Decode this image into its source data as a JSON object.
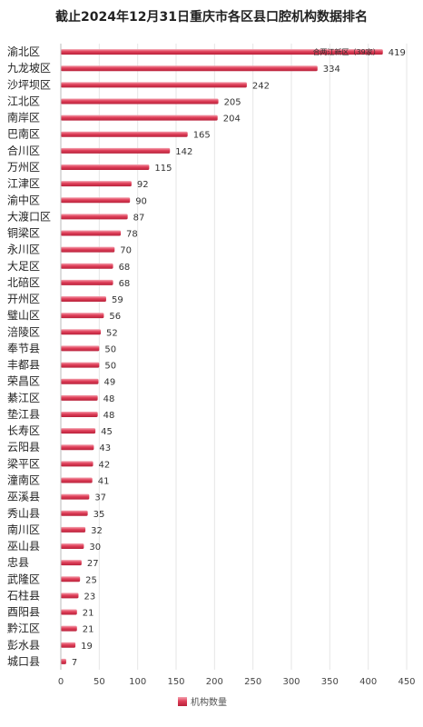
{
  "chart_data": {
    "type": "bar",
    "orientation": "horizontal",
    "title": "截止2024年12月31日重庆市各区县口腔机构数据排名",
    "categories": [
      "渝北区",
      "九龙坡区",
      "沙坪坝区",
      "江北区",
      "南岸区",
      "巴南区",
      "合川区",
      "万州区",
      "江津区",
      "渝中区",
      "大渡口区",
      "铜梁区",
      "永川区",
      "大足区",
      "北碚区",
      "开州区",
      "璧山区",
      "涪陵区",
      "奉节县",
      "丰都县",
      "荣昌区",
      "綦江区",
      "垫江县",
      "长寿区",
      "云阳县",
      "梁平区",
      "潼南区",
      "巫溪县",
      "秀山县",
      "南川区",
      "巫山县",
      "忠县",
      "武隆区",
      "石柱县",
      "酉阳县",
      "黔江区",
      "彭水县",
      "城口县"
    ],
    "series": [
      {
        "name": "机构数量",
        "values": [
          419,
          334,
          242,
          205,
          204,
          165,
          142,
          115,
          92,
          90,
          87,
          78,
          70,
          68,
          68,
          59,
          56,
          52,
          50,
          50,
          49,
          48,
          48,
          45,
          43,
          42,
          41,
          37,
          35,
          32,
          30,
          27,
          25,
          23,
          21,
          21,
          19,
          7
        ]
      }
    ],
    "xlim": [
      0,
      450
    ],
    "xticks": [
      0,
      50,
      100,
      150,
      200,
      250,
      300,
      350,
      400,
      450
    ],
    "annotation": "合两江新区（39家）",
    "grid": true,
    "legend_position": "bottom",
    "bar_color": "#e0405a"
  }
}
